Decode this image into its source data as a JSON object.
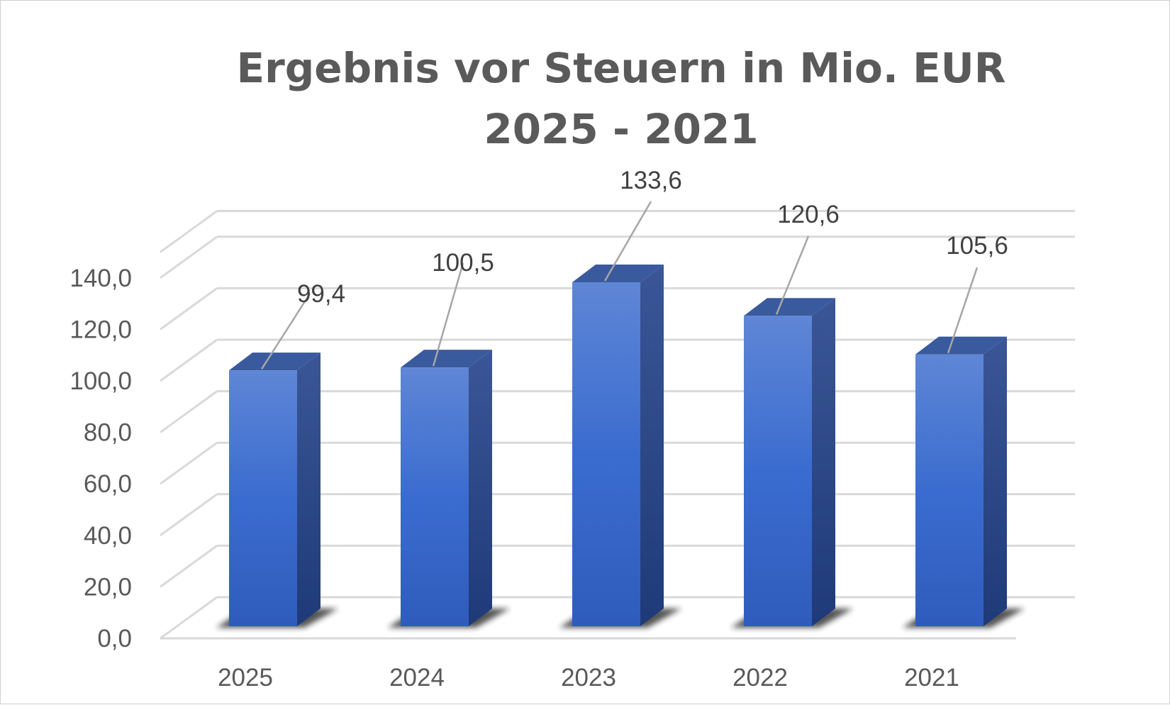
{
  "chart_data": {
    "type": "bar",
    "title": "Ergebnis vor Steuern in Mio. EUR 2025 - 2021",
    "categories": [
      "2025",
      "2024",
      "2023",
      "2022",
      "2021"
    ],
    "values": [
      99.4,
      100.5,
      133.6,
      120.6,
      105.6
    ],
    "value_labels": [
      "99,4",
      "100,5",
      "133,6",
      "120,6",
      "105,6"
    ],
    "y_ticks": [
      "0,0",
      "20,0",
      "40,0",
      "60,0",
      "80,0",
      "100,0",
      "120,0",
      "140,0"
    ],
    "ylim": [
      0,
      150
    ],
    "grid": true,
    "legend": "none",
    "style": "3d-column",
    "colors": {
      "bar_front": "#3f6fce",
      "bar_side": "#253f7e",
      "bar_top": "#3a5a9e",
      "grid": "#d9d9d9"
    }
  }
}
